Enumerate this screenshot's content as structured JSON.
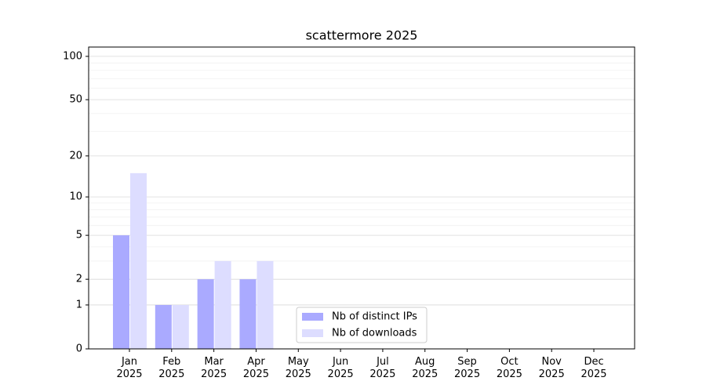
{
  "chart_data": {
    "type": "bar",
    "title": "scattermore 2025",
    "categories": [
      "Jan 2025",
      "Feb 2025",
      "Mar 2025",
      "Apr 2025",
      "May 2025",
      "Jun 2025",
      "Jul 2025",
      "Aug 2025",
      "Sep 2025",
      "Oct 2025",
      "Nov 2025",
      "Dec 2025"
    ],
    "series": [
      {
        "name": "Nb of distinct IPs",
        "color": "#aaaaff",
        "values": [
          5,
          1,
          2,
          2,
          0,
          0,
          0,
          0,
          0,
          0,
          0,
          0
        ]
      },
      {
        "name": "Nb of downloads",
        "color": "#ddddff",
        "values": [
          15,
          1,
          3,
          3,
          0,
          0,
          0,
          0,
          0,
          0,
          0,
          0
        ]
      }
    ],
    "y_scale": "log1p",
    "ylim": [
      0,
      116
    ],
    "yticks": [
      0,
      1,
      2,
      5,
      10,
      20,
      50,
      100
    ],
    "minor_yticks": [
      3,
      4,
      6,
      7,
      8,
      9,
      30,
      40,
      60,
      70,
      80,
      90
    ],
    "grid": true,
    "legend_loc": "lower center"
  }
}
